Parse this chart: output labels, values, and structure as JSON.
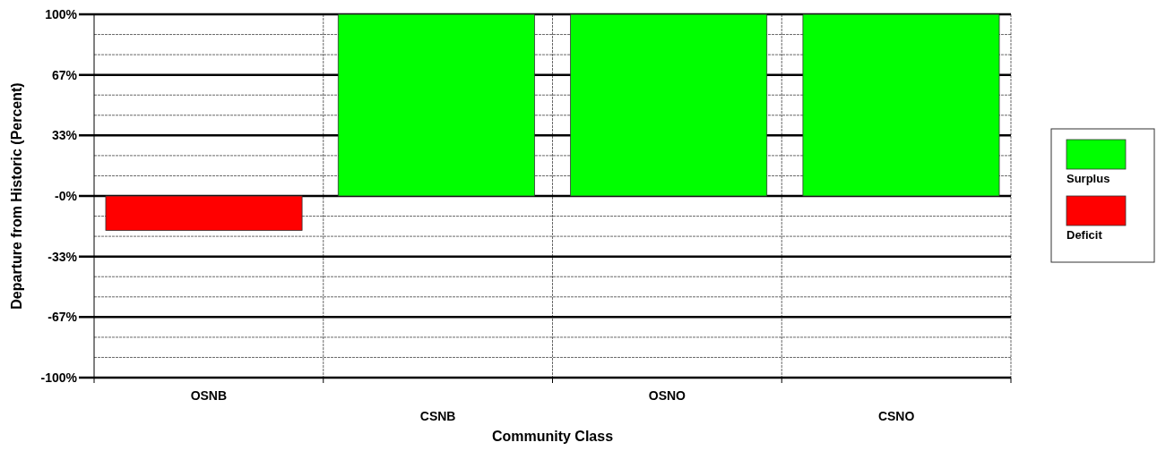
{
  "chart_data": {
    "type": "bar",
    "xlabel": "Community Class",
    "ylabel": "Departure from Historic (Percent)",
    "categories": [
      "OSNB",
      "CSNB",
      "OSNO",
      "CSNO"
    ],
    "series": [
      {
        "name": "Surplus",
        "color": "#00ff00",
        "values": [
          null,
          100,
          100,
          100
        ]
      },
      {
        "name": "Deficit",
        "color": "#ff0000",
        "values": [
          -19,
          null,
          null,
          null
        ]
      }
    ],
    "ylim": [
      -100,
      100
    ],
    "yticks": [
      {
        "value": 100,
        "label": "100%"
      },
      {
        "value": 88.89,
        "label": null
      },
      {
        "value": 77.78,
        "label": null
      },
      {
        "value": 66.67,
        "label": "67%"
      },
      {
        "value": 55.56,
        "label": null
      },
      {
        "value": 44.44,
        "label": null
      },
      {
        "value": 33.33,
        "label": "33%"
      },
      {
        "value": 22.22,
        "label": null
      },
      {
        "value": 11.11,
        "label": null
      },
      {
        "value": 0,
        "label": "-0%"
      },
      {
        "value": -11.11,
        "label": null
      },
      {
        "value": -22.22,
        "label": null
      },
      {
        "value": -33.33,
        "label": "-33%"
      },
      {
        "value": -44.44,
        "label": null
      },
      {
        "value": -55.56,
        "label": null
      },
      {
        "value": -66.67,
        "label": "-67%"
      },
      {
        "value": -77.78,
        "label": null
      },
      {
        "value": -88.89,
        "label": null
      },
      {
        "value": -100,
        "label": "-100%"
      }
    ],
    "grid": true,
    "legend": "right"
  }
}
